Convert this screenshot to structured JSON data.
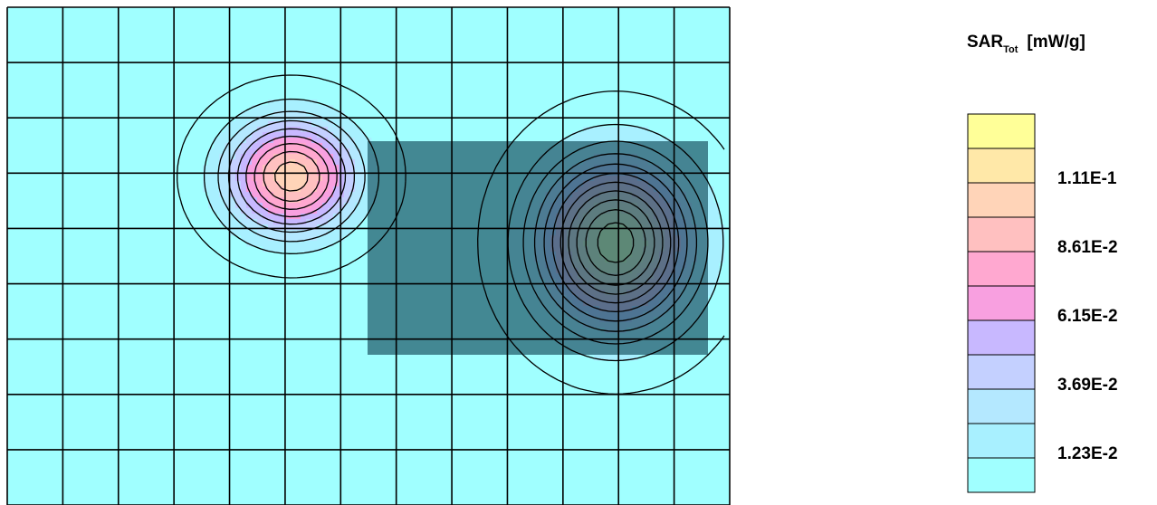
{
  "legend": {
    "quantity": "SAR",
    "subscript": "Tot",
    "unit": "[mW/g]"
  },
  "chart_data": {
    "type": "heatmap",
    "title": "",
    "xlabel": "",
    "ylabel": "",
    "grid": true,
    "grid_columns": 13,
    "grid_rows": 9,
    "colorbar": {
      "levels": 11,
      "level_colors": [
        "#A0FFFF",
        "#A8F0FF",
        "#B4E8FF",
        "#C4D0FF",
        "#C8B8FF",
        "#F8A0E0",
        "#FFA8D0",
        "#FFC0C0",
        "#FFD4B8",
        "#FFE8A8",
        "#FFFF98"
      ],
      "tick_labels": [
        "1.23E-2",
        "3.69E-2",
        "6.15E-2",
        "8.61E-2",
        "1.11E-1"
      ],
      "tick_values": [
        0.0123,
        0.0369,
        0.0615,
        0.0861,
        0.111
      ]
    },
    "peaks": [
      {
        "name": "left",
        "approx_value": 0.11
      },
      {
        "name": "right",
        "approx_value": 0.135
      }
    ]
  }
}
